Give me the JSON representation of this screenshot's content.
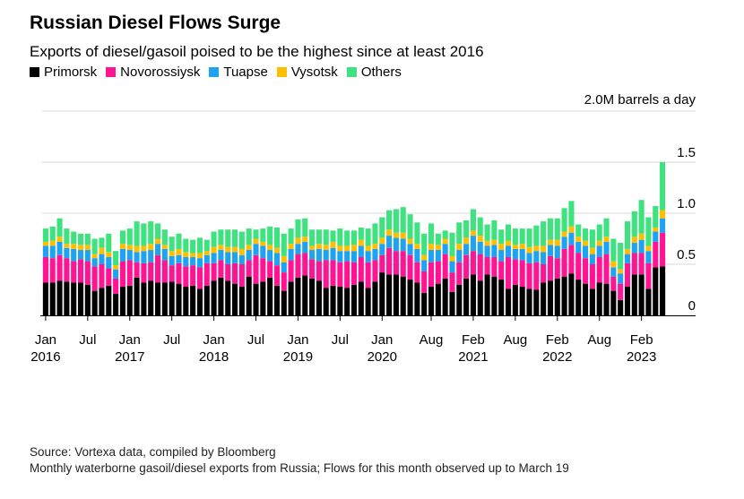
{
  "title": "Russian Diesel Flows Surge",
  "subtitle": "Exports of diesel/gasoil poised to be the highest since at least 2016",
  "footer": {
    "source": "Source: Vortexa data, compiled by Bloomberg",
    "note": "Monthly waterborne gasoil/diesel exports from Russia; Flows for this month observed up to March 19"
  },
  "chart_data": {
    "type": "bar",
    "stacked": true,
    "unit_label": "2.0M barrels a day",
    "ylim": [
      0,
      2.0
    ],
    "yticks": [
      "0",
      "0.5",
      "1.0",
      "1.5"
    ],
    "ytick_values": [
      0,
      0.5,
      1.0,
      1.5
    ],
    "xtick_labels": [
      {
        "index": 0,
        "line1": "Jan",
        "line2": "2016"
      },
      {
        "index": 6,
        "line1": "Jul",
        "line2": ""
      },
      {
        "index": 12,
        "line1": "Jan",
        "line2": "2017"
      },
      {
        "index": 18,
        "line1": "Jul",
        "line2": ""
      },
      {
        "index": 24,
        "line1": "Jan",
        "line2": "2018"
      },
      {
        "index": 30,
        "line1": "Jul",
        "line2": ""
      },
      {
        "index": 36,
        "line1": "Jan",
        "line2": "2019"
      },
      {
        "index": 42,
        "line1": "Jul",
        "line2": ""
      },
      {
        "index": 48,
        "line1": "Jan",
        "line2": "2020"
      },
      {
        "index": 55,
        "line1": "Aug",
        "line2": ""
      },
      {
        "index": 61,
        "line1": "Feb",
        "line2": "2021"
      },
      {
        "index": 67,
        "line1": "Aug",
        "line2": ""
      },
      {
        "index": 73,
        "line1": "Feb",
        "line2": "2022"
      },
      {
        "index": 79,
        "line1": "Aug",
        "line2": ""
      },
      {
        "index": 85,
        "line1": "Feb",
        "line2": "2023"
      }
    ],
    "legend_position": "top-left",
    "grid": true,
    "series": [
      {
        "name": "Primorsk",
        "color": "#000000",
        "values": [
          0.32,
          0.32,
          0.34,
          0.33,
          0.32,
          0.32,
          0.3,
          0.24,
          0.27,
          0.29,
          0.21,
          0.28,
          0.29,
          0.37,
          0.32,
          0.34,
          0.32,
          0.32,
          0.33,
          0.31,
          0.28,
          0.29,
          0.26,
          0.29,
          0.34,
          0.37,
          0.34,
          0.31,
          0.28,
          0.38,
          0.31,
          0.33,
          0.37,
          0.29,
          0.24,
          0.33,
          0.37,
          0.39,
          0.36,
          0.34,
          0.27,
          0.29,
          0.28,
          0.27,
          0.3,
          0.33,
          0.27,
          0.33,
          0.42,
          0.4,
          0.4,
          0.38,
          0.35,
          0.32,
          0.22,
          0.28,
          0.31,
          0.36,
          0.23,
          0.3,
          0.36,
          0.4,
          0.34,
          0.4,
          0.38,
          0.35,
          0.26,
          0.3,
          0.28,
          0.26,
          0.25,
          0.32,
          0.34,
          0.36,
          0.38,
          0.41,
          0.35,
          0.31,
          0.26,
          0.32,
          0.31,
          0.24,
          0.15,
          0.28,
          0.4,
          0.4,
          0.26,
          0.47,
          0.48
        ]
      },
      {
        "name": "Novorossiysk",
        "color": "#ff1493",
        "values": [
          0.25,
          0.24,
          0.25,
          0.23,
          0.21,
          0.23,
          0.23,
          0.24,
          0.23,
          0.17,
          0.15,
          0.25,
          0.25,
          0.15,
          0.19,
          0.18,
          0.27,
          0.22,
          0.16,
          0.2,
          0.2,
          0.2,
          0.21,
          0.22,
          0.17,
          0.17,
          0.16,
          0.2,
          0.22,
          0.16,
          0.28,
          0.23,
          0.16,
          0.2,
          0.18,
          0.21,
          0.23,
          0.22,
          0.19,
          0.19,
          0.27,
          0.25,
          0.24,
          0.26,
          0.22,
          0.24,
          0.25,
          0.21,
          0.17,
          0.26,
          0.23,
          0.25,
          0.24,
          0.2,
          0.21,
          0.24,
          0.22,
          0.24,
          0.19,
          0.22,
          0.23,
          0.23,
          0.26,
          0.17,
          0.19,
          0.18,
          0.31,
          0.25,
          0.26,
          0.25,
          0.27,
          0.18,
          0.24,
          0.2,
          0.27,
          0.28,
          0.26,
          0.25,
          0.24,
          0.25,
          0.29,
          0.14,
          0.16,
          0.23,
          0.21,
          0.21,
          0.25,
          0.25,
          0.33
        ]
      },
      {
        "name": "Tuapse",
        "color": "#1ea3f3",
        "values": [
          0.11,
          0.12,
          0.13,
          0.1,
          0.12,
          0.09,
          0.11,
          0.08,
          0.1,
          0.11,
          0.09,
          0.12,
          0.1,
          0.1,
          0.12,
          0.12,
          0.11,
          0.11,
          0.09,
          0.08,
          0.09,
          0.08,
          0.09,
          0.08,
          0.1,
          0.1,
          0.12,
          0.11,
          0.09,
          0.1,
          0.11,
          0.12,
          0.11,
          0.12,
          0.1,
          0.11,
          0.1,
          0.11,
          0.09,
          0.12,
          0.1,
          0.12,
          0.11,
          0.1,
          0.11,
          0.11,
          0.11,
          0.11,
          0.11,
          0.12,
          0.13,
          0.12,
          0.11,
          0.13,
          0.11,
          0.12,
          0.11,
          0.1,
          0.11,
          0.12,
          0.11,
          0.15,
          0.12,
          0.11,
          0.12,
          0.11,
          0.11,
          0.1,
          0.11,
          0.1,
          0.11,
          0.12,
          0.11,
          0.12,
          0.12,
          0.12,
          0.11,
          0.12,
          0.1,
          0.11,
          0.12,
          0.09,
          0.1,
          0.09,
          0.1,
          0.13,
          0.12,
          0.1,
          0.14
        ]
      },
      {
        "name": "Vysotsk",
        "color": "#fdbf00",
        "values": [
          0.04,
          0.05,
          0.05,
          0.04,
          0.05,
          0.05,
          0.05,
          0.04,
          0.06,
          0.05,
          0.04,
          0.05,
          0.05,
          0.06,
          0.05,
          0.06,
          0.05,
          0.04,
          0.05,
          0.06,
          0.05,
          0.04,
          0.05,
          0.04,
          0.06,
          0.05,
          0.05,
          0.05,
          0.06,
          0.05,
          0.05,
          0.04,
          0.05,
          0.05,
          0.06,
          0.05,
          0.06,
          0.05,
          0.04,
          0.05,
          0.05,
          0.06,
          0.05,
          0.05,
          0.06,
          0.06,
          0.05,
          0.05,
          0.06,
          0.06,
          0.05,
          0.06,
          0.05,
          0.05,
          0.05,
          0.06,
          0.05,
          0.05,
          0.05,
          0.06,
          0.06,
          0.05,
          0.06,
          0.05,
          0.05,
          0.06,
          0.05,
          0.04,
          0.05,
          0.06,
          0.05,
          0.06,
          0.05,
          0.06,
          0.05,
          0.06,
          0.05,
          0.05,
          0.06,
          0.05,
          0.05,
          0.06,
          0.04,
          0.05,
          0.06,
          0.06,
          0.05,
          0.04,
          0.08
        ]
      },
      {
        "name": "Others",
        "color": "#3ee37f",
        "values": [
          0.13,
          0.14,
          0.18,
          0.15,
          0.12,
          0.11,
          0.11,
          0.15,
          0.1,
          0.18,
          0.14,
          0.13,
          0.16,
          0.24,
          0.22,
          0.22,
          0.15,
          0.15,
          0.14,
          0.15,
          0.13,
          0.13,
          0.15,
          0.11,
          0.15,
          0.15,
          0.17,
          0.17,
          0.17,
          0.16,
          0.09,
          0.13,
          0.18,
          0.2,
          0.22,
          0.15,
          0.18,
          0.18,
          0.16,
          0.14,
          0.15,
          0.11,
          0.17,
          0.15,
          0.14,
          0.12,
          0.17,
          0.2,
          0.2,
          0.19,
          0.23,
          0.25,
          0.24,
          0.21,
          0.21,
          0.2,
          0.11,
          0.08,
          0.23,
          0.21,
          0.17,
          0.21,
          0.18,
          0.16,
          0.19,
          0.14,
          0.16,
          0.16,
          0.15,
          0.18,
          0.2,
          0.24,
          0.21,
          0.21,
          0.23,
          0.25,
          0.12,
          0.12,
          0.18,
          0.16,
          0.18,
          0.22,
          0.26,
          0.27,
          0.25,
          0.33,
          0.28,
          0.21,
          0.47
        ]
      }
    ]
  }
}
